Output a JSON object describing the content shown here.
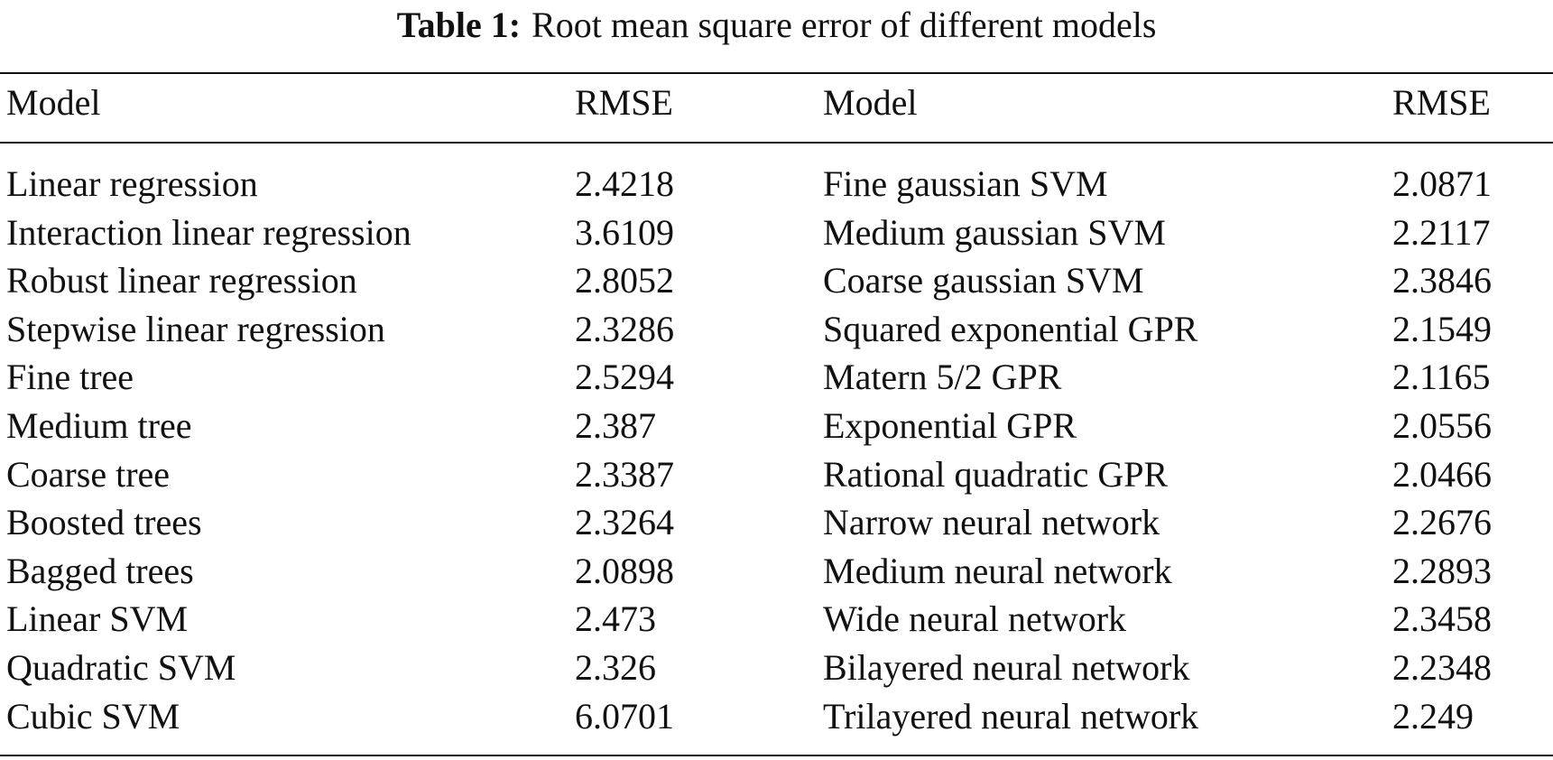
{
  "caption": {
    "label": "Table 1:",
    "text": "Root mean square error of different models"
  },
  "table": {
    "headers": [
      "Model",
      "RMSE",
      "Model",
      "RMSE"
    ],
    "rows": [
      [
        "Linear regression",
        "2.4218",
        "Fine gaussian SVM",
        "2.0871"
      ],
      [
        "Interaction linear regression",
        "3.6109",
        "Medium gaussian SVM",
        "2.2117"
      ],
      [
        "Robust linear regression",
        "2.8052",
        "Coarse gaussian SVM",
        "2.3846"
      ],
      [
        "Stepwise linear regression",
        "2.3286",
        "Squared exponential GPR",
        "2.1549"
      ],
      [
        "Fine tree",
        "2.5294",
        "Matern 5/2 GPR",
        "2.1165"
      ],
      [
        "Medium tree",
        "2.387",
        "Exponential GPR",
        "2.0556"
      ],
      [
        "Coarse tree",
        "2.3387",
        "Rational quadratic GPR",
        "2.0466"
      ],
      [
        "Boosted trees",
        "2.3264",
        "Narrow neural network",
        "2.2676"
      ],
      [
        "Bagged trees",
        "2.0898",
        "Medium neural network",
        "2.2893"
      ],
      [
        "Linear SVM",
        "2.473",
        "Wide neural network",
        "2.3458"
      ],
      [
        "Quadratic SVM",
        "2.326",
        "Bilayered neural network",
        "2.2348"
      ],
      [
        "Cubic SVM",
        "6.0701",
        "Trilayered neural network",
        "2.249"
      ]
    ]
  }
}
